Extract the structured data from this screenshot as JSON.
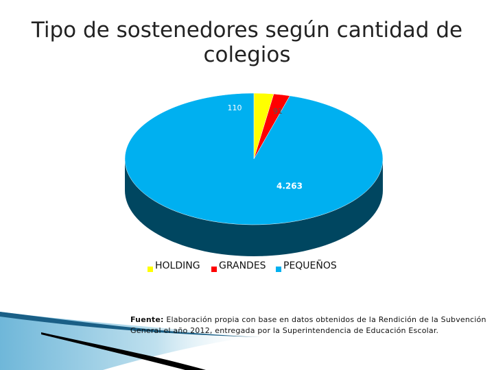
{
  "chart_data": {
    "type": "pie",
    "title": "Tipo de sostenedores según cantidad de colegios",
    "categories": [
      "HOLDING",
      "GRANDES",
      "PEQUEÑOS"
    ],
    "values": [
      110,
      91,
      4263
    ],
    "value_labels": [
      "110",
      "91",
      "4.263"
    ],
    "colors": [
      "#ffff00",
      "#ff0000",
      "#00b0f0"
    ],
    "legend": "bottom"
  },
  "source": {
    "label": "Fuente:",
    "text": "Elaboración propia con base en datos obtenidos de la Rendición de la Subvención General el año 2012, entregada por la Superintendencia de Educación Escolar."
  }
}
